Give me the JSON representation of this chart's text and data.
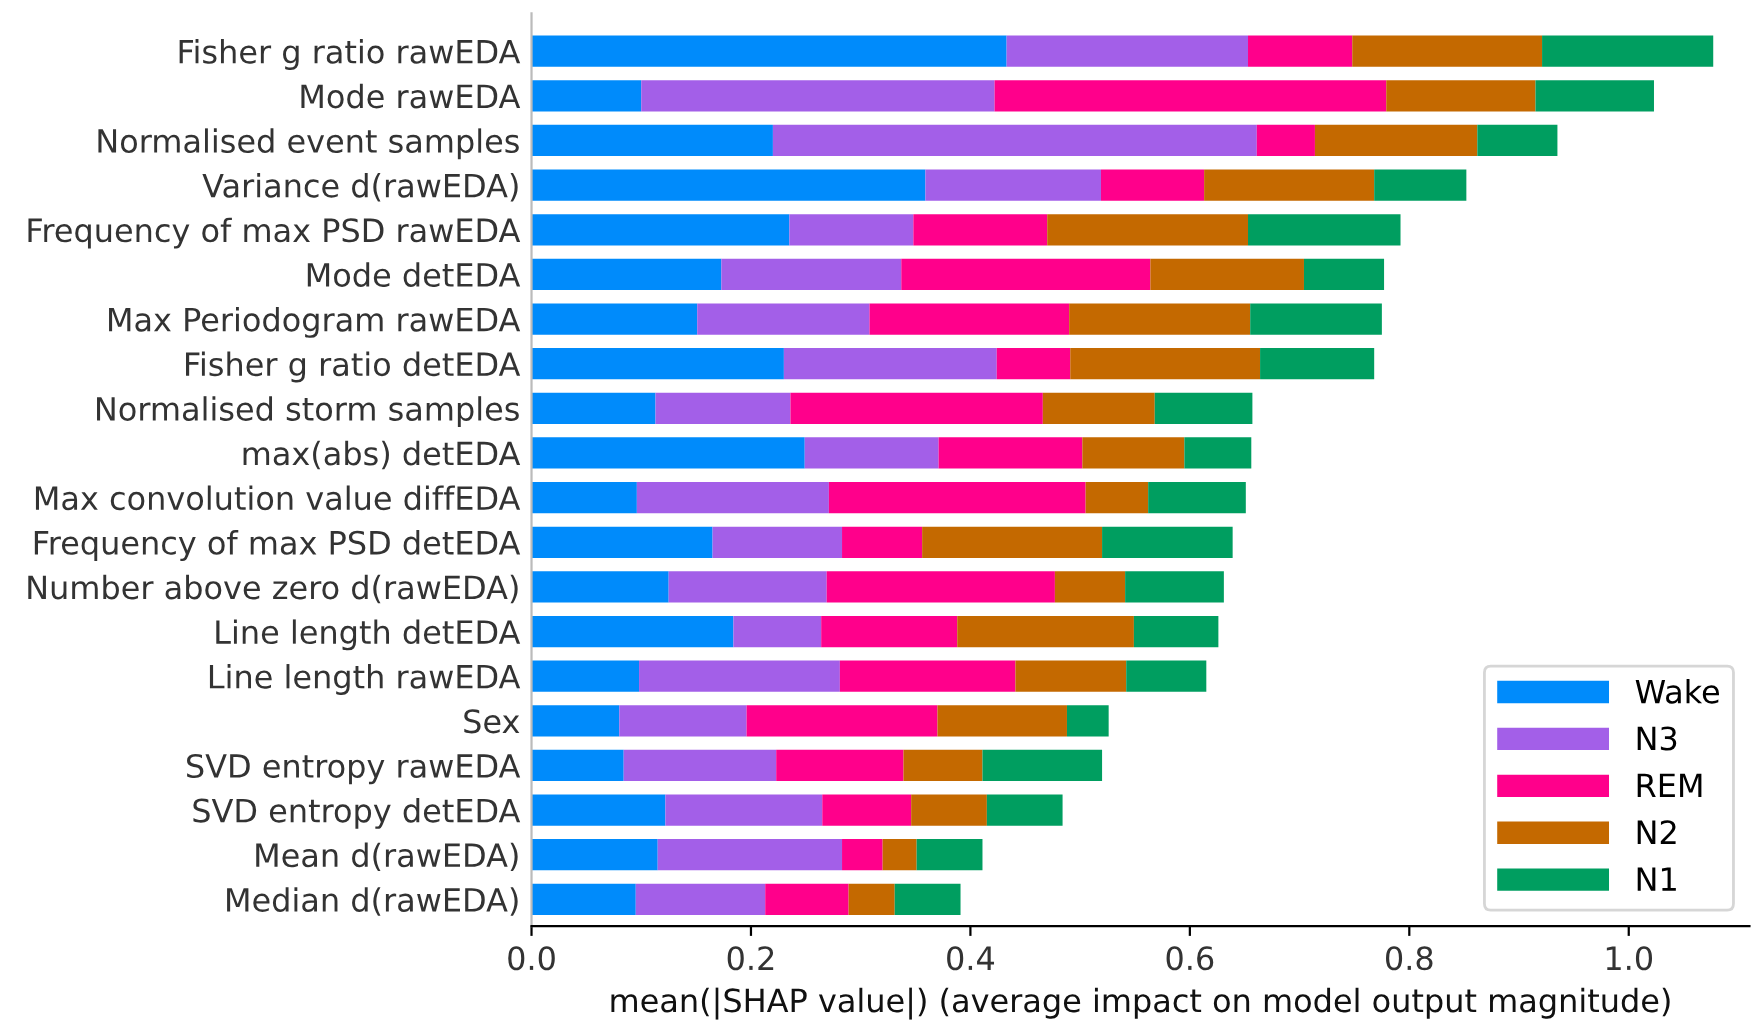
{
  "chart_data": {
    "type": "bar",
    "orientation": "horizontal",
    "stacked": true,
    "categories": [
      "Fisher g ratio rawEDA",
      "Mode rawEDA",
      "Normalised event samples",
      "Variance d(rawEDA)",
      "Frequency of max PSD rawEDA",
      "Mode detEDA",
      "Max Periodogram rawEDA",
      "Fisher g ratio detEDA",
      "Normalised storm samples",
      "max(abs) detEDA",
      "Max convolution value diffEDA",
      "Frequency of max PSD detEDA",
      "Number above zero d(rawEDA)",
      "Line length detEDA",
      "Line length rawEDA",
      "Sex",
      "SVD entropy rawEDA",
      "SVD entropy detEDA",
      "Mean d(rawEDA)",
      "Median d(rawEDA)"
    ],
    "series": [
      {
        "name": "Wake",
        "color": "#008bfb",
        "values": [
          0.433,
          0.1,
          0.22,
          0.359,
          0.235,
          0.173,
          0.151,
          0.23,
          0.113,
          0.249,
          0.096,
          0.165,
          0.125,
          0.184,
          0.098,
          0.08,
          0.084,
          0.122,
          0.115,
          0.095
        ]
      },
      {
        "name": "N3",
        "color": "#a35fe8",
        "values": [
          0.22,
          0.322,
          0.441,
          0.16,
          0.113,
          0.164,
          0.157,
          0.194,
          0.123,
          0.122,
          0.175,
          0.118,
          0.144,
          0.08,
          0.183,
          0.116,
          0.139,
          0.143,
          0.168,
          0.118
        ]
      },
      {
        "name": "REM",
        "color": "#ff008b",
        "values": [
          0.095,
          0.357,
          0.053,
          0.094,
          0.122,
          0.227,
          0.182,
          0.067,
          0.23,
          0.131,
          0.234,
          0.073,
          0.208,
          0.124,
          0.16,
          0.174,
          0.116,
          0.081,
          0.037,
          0.076
        ]
      },
      {
        "name": "N2",
        "color": "#c46900",
        "values": [
          0.173,
          0.136,
          0.148,
          0.155,
          0.183,
          0.14,
          0.165,
          0.173,
          0.102,
          0.093,
          0.057,
          0.164,
          0.064,
          0.161,
          0.101,
          0.118,
          0.072,
          0.069,
          0.031,
          0.042
        ]
      },
      {
        "name": "N1",
        "color": "#009e60",
        "values": [
          0.156,
          0.108,
          0.073,
          0.084,
          0.139,
          0.073,
          0.12,
          0.104,
          0.089,
          0.061,
          0.089,
          0.119,
          0.09,
          0.077,
          0.073,
          0.038,
          0.109,
          0.069,
          0.06,
          0.06
        ]
      }
    ],
    "xlabel": "mean(|SHAP value|) (average impact on model output magnitude)",
    "xlim": [
      0,
      1.11
    ],
    "xticks": [
      {
        "value": 0,
        "label": "0.0"
      },
      {
        "value": 0.2,
        "label": "0.2"
      },
      {
        "value": 0.4,
        "label": "0.4"
      },
      {
        "value": 0.6,
        "label": "0.6"
      },
      {
        "value": 0.8,
        "label": "0.8"
      },
      {
        "value": 1.0,
        "label": "1.0"
      }
    ],
    "legend": "bottom right",
    "grid": false
  }
}
